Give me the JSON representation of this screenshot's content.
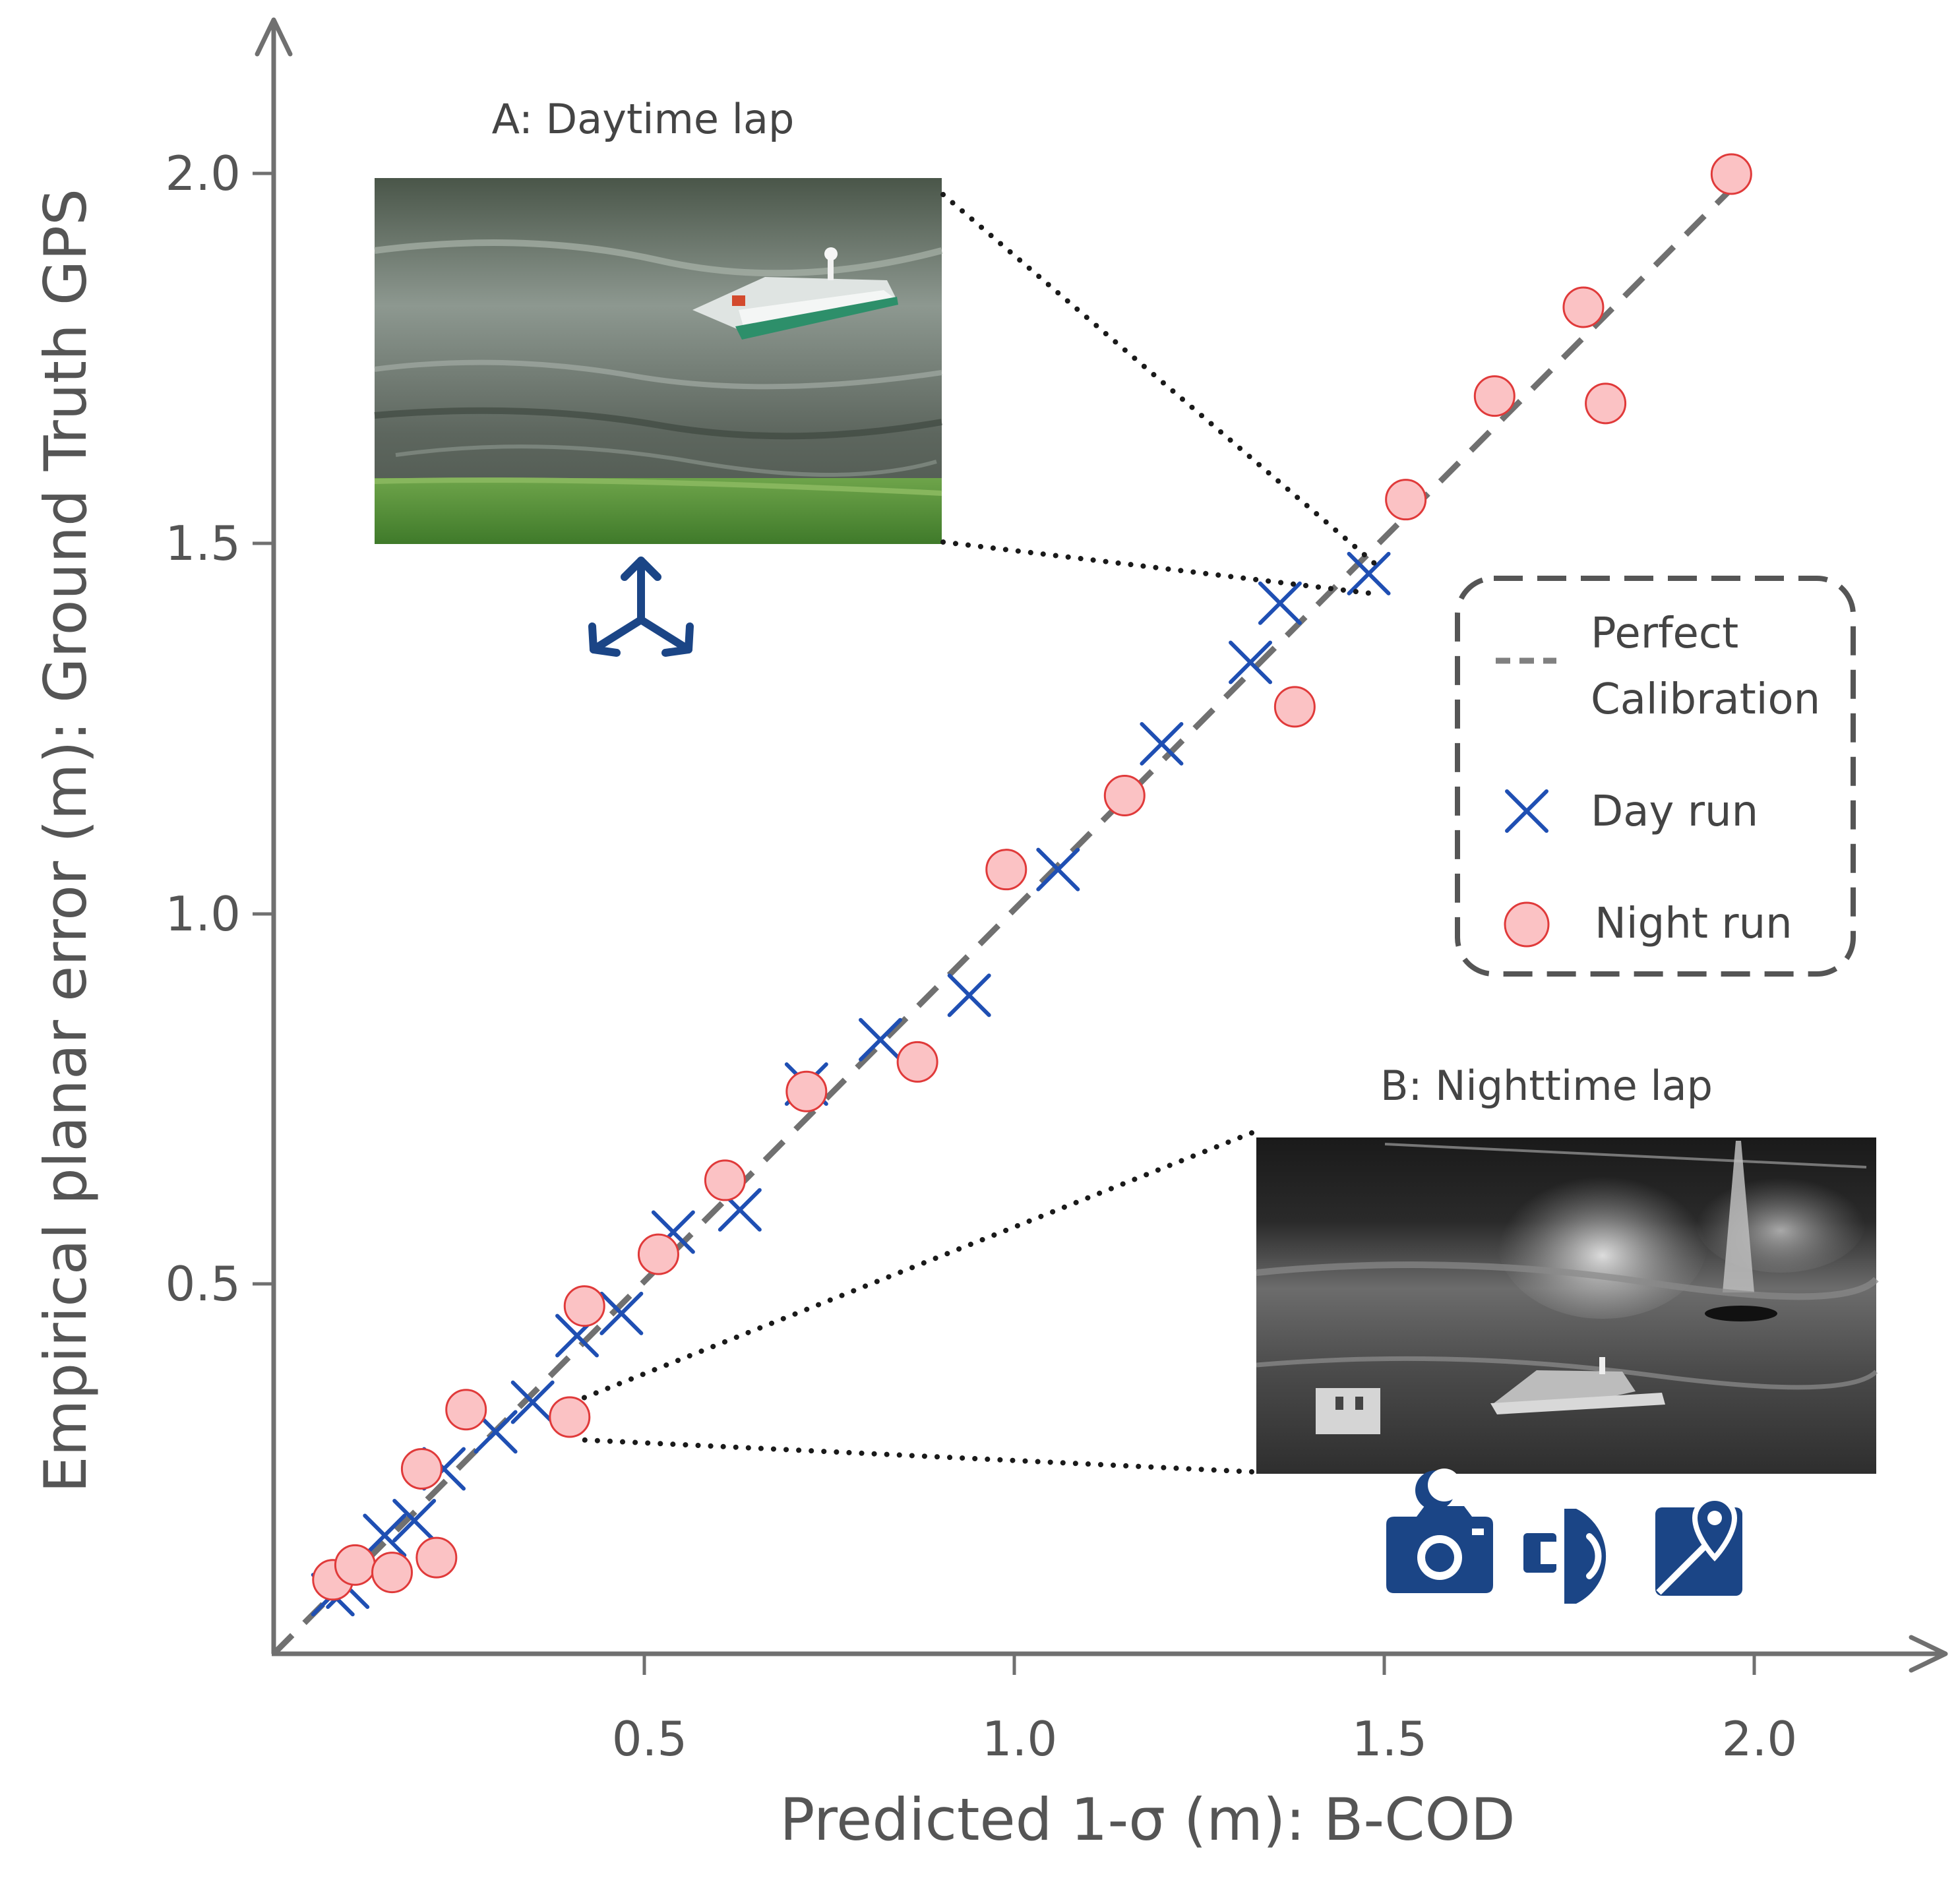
{
  "chart_data": {
    "type": "scatter",
    "title": "",
    "xlabel": "Predicted 1-σ (m): B-COD",
    "ylabel": "Empirical planar error (m): Ground Truth GPS",
    "xlim": [
      0.0,
      2.2
    ],
    "ylim": [
      0.0,
      2.2
    ],
    "xticks": [
      "0.5",
      "1.0",
      "1.5",
      "2.0"
    ],
    "yticks": [
      "0.5",
      "1.0",
      "1.5",
      "2.0"
    ],
    "xtick_values": [
      0.5,
      1.0,
      1.5,
      2.0
    ],
    "ytick_values": [
      0.5,
      1.0,
      1.5,
      2.0
    ],
    "series": [
      {
        "name": "Perfect Calibration",
        "kind": "line",
        "style": "dashed",
        "color": "#707070",
        "x": [
          0.0,
          1.97
        ],
        "y": [
          0.0,
          1.98
        ]
      },
      {
        "name": "Day run",
        "kind": "scatter",
        "marker": "x",
        "color": "#1f4fb3",
        "x": [
          0.08,
          0.1,
          0.15,
          0.19,
          0.23,
          0.3,
          0.35,
          0.41,
          0.47,
          0.54,
          0.63,
          0.72,
          0.82,
          0.94,
          1.06,
          1.2,
          1.32,
          1.36,
          1.48
        ],
        "y": [
          0.08,
          0.09,
          0.16,
          0.18,
          0.25,
          0.3,
          0.34,
          0.43,
          0.46,
          0.57,
          0.6,
          0.77,
          0.83,
          0.89,
          1.06,
          1.23,
          1.34,
          1.42,
          1.46
        ]
      },
      {
        "name": "Night run",
        "kind": "scatter",
        "marker": "o",
        "color": "#fbc2c4",
        "edge_color": "#e03a3a",
        "x": [
          0.08,
          0.11,
          0.16,
          0.2,
          0.22,
          0.26,
          0.4,
          0.42,
          0.52,
          0.61,
          0.72,
          0.87,
          0.99,
          1.15,
          1.38,
          1.53,
          1.65,
          1.77,
          1.8,
          1.97
        ],
        "y": [
          0.1,
          0.12,
          0.11,
          0.25,
          0.13,
          0.33,
          0.32,
          0.47,
          0.54,
          0.64,
          0.76,
          0.8,
          1.06,
          1.16,
          1.28,
          1.56,
          1.7,
          1.82,
          1.69,
          2.0
        ]
      }
    ],
    "legend": {
      "placement": "right",
      "entries": [
        {
          "label_lines": [
            "Perfect",
            "Calibration"
          ]
        },
        {
          "label": "Day run"
        },
        {
          "label": "Night run"
        }
      ]
    },
    "annotations": [
      {
        "label": "A: Daytime lap",
        "points_to": {
          "x": 1.48,
          "y": 1.45
        }
      },
      {
        "label": "B: Nighttime lap",
        "points_to": {
          "x": 0.4,
          "y": 0.32
        }
      }
    ]
  },
  "insets": {
    "day": {
      "title": "A: Daytime lap",
      "icon": "3d-axes-icon"
    },
    "night": {
      "title": "B: Nighttime lap",
      "icons": [
        "night-camera-icon",
        "sonar-icon",
        "gps-map-icon"
      ]
    }
  },
  "colors": {
    "axis": "#707070",
    "text": "#555555",
    "icon": "#1b4586",
    "legend_border": "#555555"
  }
}
